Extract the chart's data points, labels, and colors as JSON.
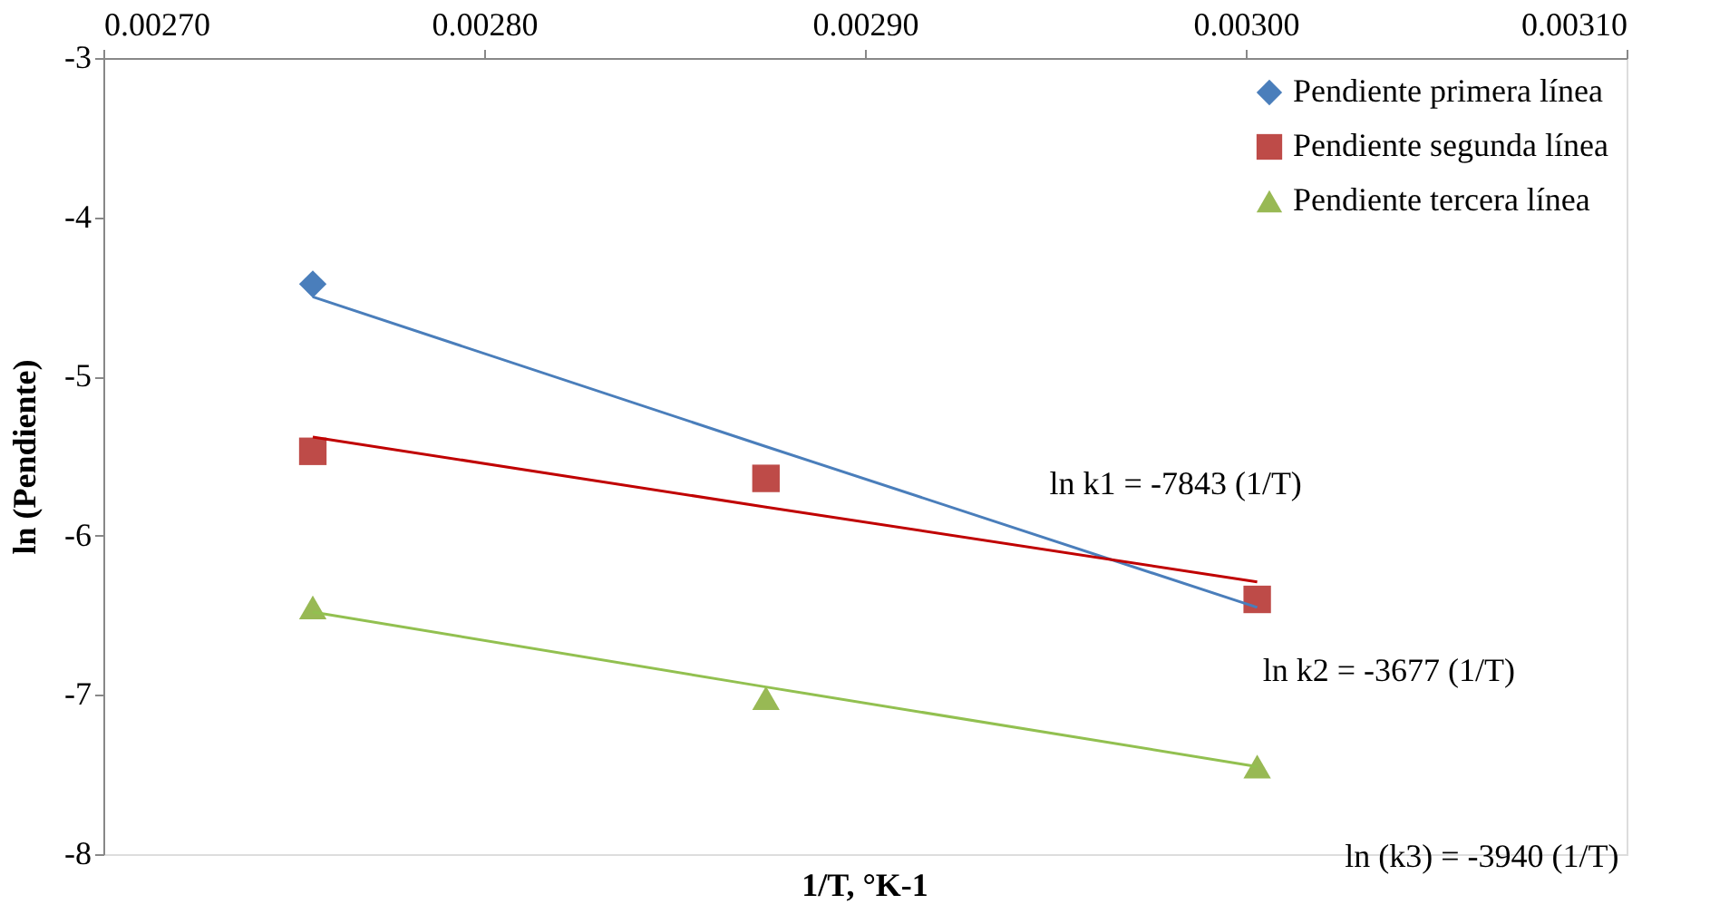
{
  "chart_data": {
    "type": "scatter",
    "xlabel": "1/T, °K-1",
    "ylabel": "ln (Pendiente)",
    "x": [
      0.002755,
      0.002874,
      0.003003
    ],
    "series": [
      {
        "name": "Pendiente primera línea",
        "color": "#4a7ebb",
        "marker": "diamond",
        "values": [
          -4.42,
          null,
          null
        ]
      },
      {
        "name": "Pendiente segunda línea",
        "color": "#be4b48",
        "marker": "square",
        "values": [
          -5.47,
          -5.64,
          -6.4
        ]
      },
      {
        "name": "Pendiente tercera línea",
        "color": "#98b954",
        "marker": "triangle",
        "values": [
          -6.45,
          -7.02,
          -7.45
        ]
      },
      {
        "type": "line",
        "color": "#4a7ebb",
        "values": [
          -4.5,
          -5.44,
          -6.45
        ]
      },
      {
        "type": "line",
        "color": "#c00000",
        "values": [
          -5.38,
          -5.82,
          -6.29
        ]
      },
      {
        "type": "line",
        "color": "#92c050",
        "values": [
          -6.48,
          -6.95,
          -7.45
        ]
      }
    ],
    "xlim": [
      0.0027,
      0.0031
    ],
    "ylim": [
      -8,
      -3
    ],
    "xticks": [
      {
        "value": 0.0027,
        "label": "0.00270"
      },
      {
        "value": 0.0028,
        "label": "0.00280"
      },
      {
        "value": 0.0029,
        "label": "0.00290"
      },
      {
        "value": 0.003,
        "label": "0.00300"
      },
      {
        "value": 0.0031,
        "label": "0.00310"
      }
    ],
    "yticks": [
      -8,
      -7,
      -6,
      -5,
      -4,
      -3
    ],
    "annotations": [
      "ln k1 = -7843 (1/T)",
      "ln k2 = -3677 (1/T)",
      "ln (k3) = -3940 (1/T)"
    ],
    "grid": false,
    "legend": "top right"
  }
}
